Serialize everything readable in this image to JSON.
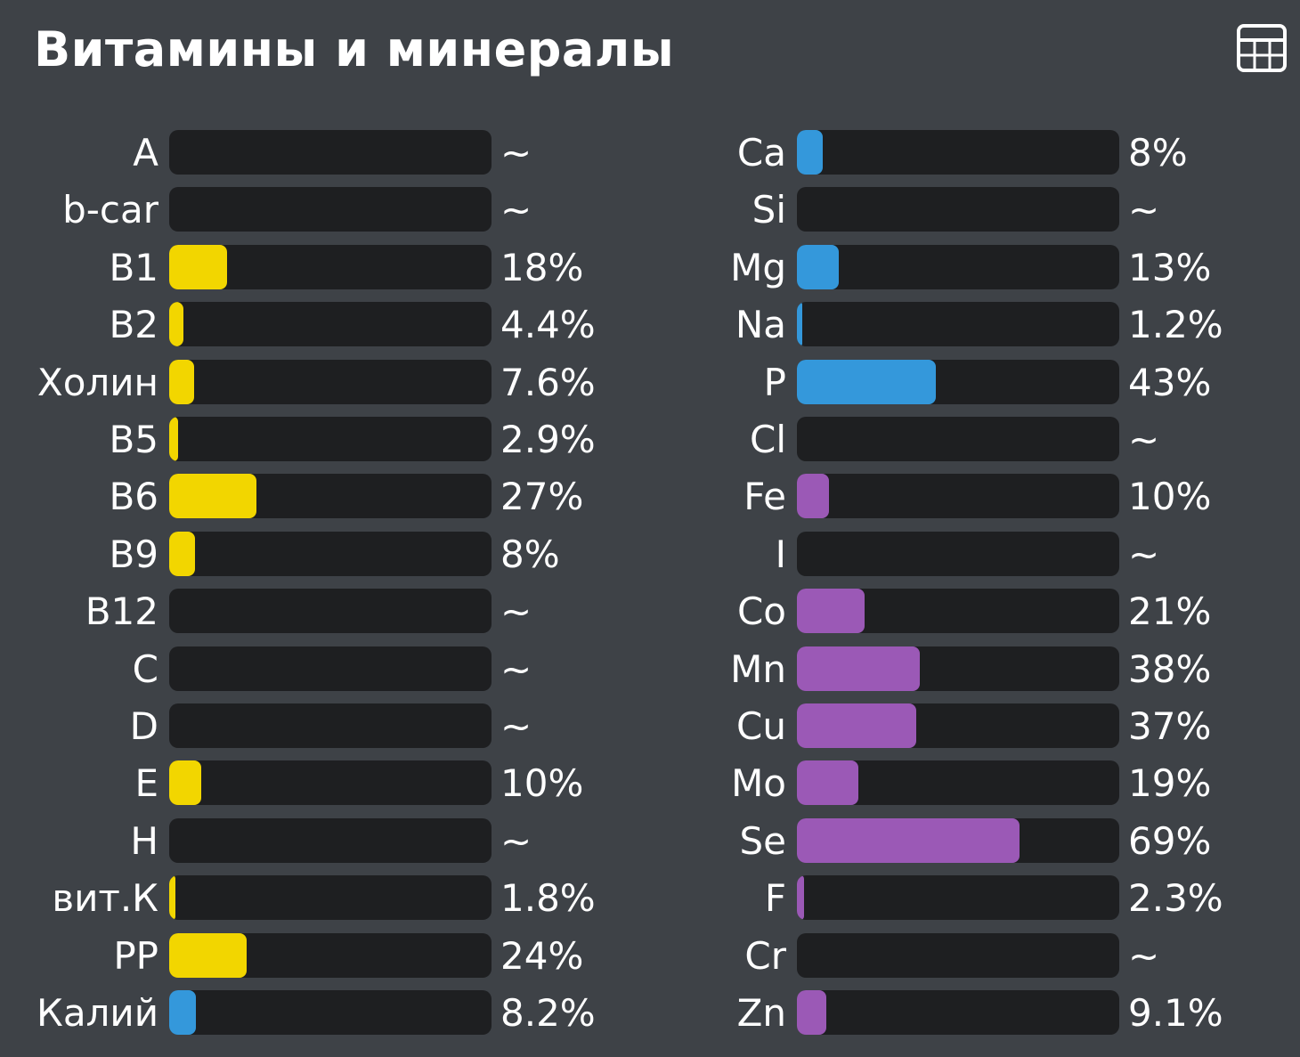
{
  "title": "Витамины и минералы",
  "icon": "table-icon",
  "colors": {
    "vitamin": "#f2d600",
    "electrolyte": "#3498db",
    "trace": "#9b59b6",
    "track": "#1e1f21",
    "background": "#3e4247"
  },
  "chart_data": {
    "type": "bar",
    "orientation": "horizontal",
    "xlim": [
      0,
      100
    ],
    "columns": [
      {
        "items": [
          {
            "label": "A",
            "value": null,
            "text": "~",
            "color": "vitamin"
          },
          {
            "label": "b-car",
            "value": null,
            "text": "~",
            "color": "vitamin"
          },
          {
            "label": "B1",
            "value": 18,
            "text": "18%",
            "color": "vitamin"
          },
          {
            "label": "B2",
            "value": 4.4,
            "text": "4.4%",
            "color": "vitamin"
          },
          {
            "label": "Холин",
            "value": 7.6,
            "text": "7.6%",
            "color": "vitamin"
          },
          {
            "label": "B5",
            "value": 2.9,
            "text": "2.9%",
            "color": "vitamin"
          },
          {
            "label": "B6",
            "value": 27,
            "text": "27%",
            "color": "vitamin"
          },
          {
            "label": "B9",
            "value": 8,
            "text": "8%",
            "color": "vitamin"
          },
          {
            "label": "B12",
            "value": null,
            "text": "~",
            "color": "vitamin"
          },
          {
            "label": "C",
            "value": null,
            "text": "~",
            "color": "vitamin"
          },
          {
            "label": "D",
            "value": null,
            "text": "~",
            "color": "vitamin"
          },
          {
            "label": "E",
            "value": 10,
            "text": "10%",
            "color": "vitamin"
          },
          {
            "label": "H",
            "value": null,
            "text": "~",
            "color": "vitamin"
          },
          {
            "label": "вит.К",
            "value": 1.8,
            "text": "1.8%",
            "color": "vitamin"
          },
          {
            "label": "PP",
            "value": 24,
            "text": "24%",
            "color": "vitamin"
          },
          {
            "label": "Калий",
            "value": 8.2,
            "text": "8.2%",
            "color": "electrolyte"
          }
        ]
      },
      {
        "items": [
          {
            "label": "Ca",
            "value": 8,
            "text": "8%",
            "color": "electrolyte"
          },
          {
            "label": "Si",
            "value": null,
            "text": "~",
            "color": "electrolyte"
          },
          {
            "label": "Mg",
            "value": 13,
            "text": "13%",
            "color": "electrolyte"
          },
          {
            "label": "Na",
            "value": 1.2,
            "text": "1.2%",
            "color": "electrolyte"
          },
          {
            "label": "P",
            "value": 43,
            "text": "43%",
            "color": "electrolyte"
          },
          {
            "label": "Cl",
            "value": null,
            "text": "~",
            "color": "electrolyte"
          },
          {
            "label": "Fe",
            "value": 10,
            "text": "10%",
            "color": "trace"
          },
          {
            "label": "I",
            "value": null,
            "text": "~",
            "color": "trace"
          },
          {
            "label": "Co",
            "value": 21,
            "text": "21%",
            "color": "trace"
          },
          {
            "label": "Mn",
            "value": 38,
            "text": "38%",
            "color": "trace"
          },
          {
            "label": "Cu",
            "value": 37,
            "text": "37%",
            "color": "trace"
          },
          {
            "label": "Mo",
            "value": 19,
            "text": "19%",
            "color": "trace"
          },
          {
            "label": "Se",
            "value": 69,
            "text": "69%",
            "color": "trace"
          },
          {
            "label": "F",
            "value": 2.3,
            "text": "2.3%",
            "color": "trace"
          },
          {
            "label": "Cr",
            "value": null,
            "text": "~",
            "color": "trace"
          },
          {
            "label": "Zn",
            "value": 9.1,
            "text": "9.1%",
            "color": "trace"
          }
        ]
      }
    ]
  }
}
